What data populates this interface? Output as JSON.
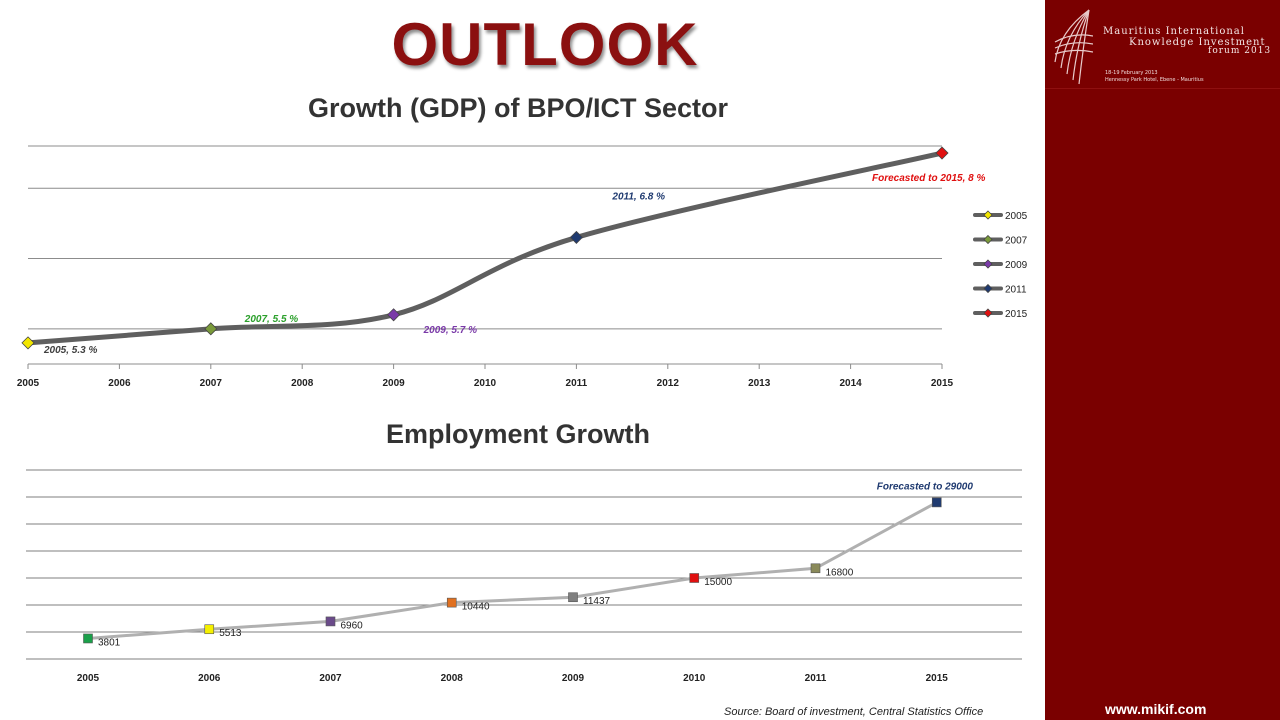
{
  "slide": {
    "title": "OUTLOOK",
    "source": "Source:  Board of investment,  Central Statistics Office",
    "website": "www.mikif.com"
  },
  "logo": {
    "line1": "Mauritius International",
    "line2": "Knowledge Investment",
    "line3": "forum 2013",
    "dates": "18-19 February 2013",
    "venue": "Hennessy Park Hotel, Ebene - Mauritius"
  },
  "colors": {
    "brand_red": "#8b1010",
    "sidebar": "#7a0000",
    "gdp_line": "#5f5f5f",
    "emp_line": "#b0b0b0"
  },
  "chart_data": [
    {
      "type": "line",
      "title": "Growth (GDP) of BPO/ICT Sector",
      "x_ticks": [
        "2005",
        "2006",
        "2007",
        "2008",
        "2009",
        "2010",
        "2011",
        "2012",
        "2013",
        "2014",
        "2015"
      ],
      "xlim": [
        2005,
        2015
      ],
      "ylim": [
        5,
        8.1
      ],
      "ygrid": [
        5.5,
        6.5,
        7.5
      ],
      "grid": true,
      "legend_placement": "right",
      "series": [
        {
          "name": "2005",
          "x": 2005,
          "y": 5.3,
          "color": "#f2e600",
          "label": "2005, 5.3 %",
          "label_color": "#404040"
        },
        {
          "name": "2007",
          "x": 2007,
          "y": 5.5,
          "color": "#7a9a3a",
          "label": "2007, 5.5 %",
          "label_color": "#2ca02c"
        },
        {
          "name": "2009",
          "x": 2009,
          "y": 5.7,
          "color": "#7a3aa8",
          "label": "2009, 5.7 %",
          "label_color": "#7a3aa8"
        },
        {
          "name": "2011",
          "x": 2011,
          "y": 6.8,
          "color": "#1f3a70",
          "label": "2011, 6.8 %",
          "label_color": "#1f3a70"
        },
        {
          "name": "2015",
          "x": 2015,
          "y": 8,
          "color": "#e01010",
          "label": "Forecasted to 2015, 8 %",
          "label_color": "#e01010"
        }
      ]
    },
    {
      "type": "line",
      "title": "Employment Growth",
      "categories": [
        "2005",
        "2006",
        "2007",
        "2008",
        "2009",
        "2010",
        "2011",
        "2015"
      ],
      "values": [
        3801,
        5513,
        6960,
        10440,
        11437,
        15000,
        16800,
        29000
      ],
      "point_labels": [
        "3801",
        "5513",
        "6960",
        "10440",
        "11437",
        "15000",
        "16800",
        "Forecasted to 29000"
      ],
      "point_colors": [
        "#1aa04a",
        "#f5f000",
        "#6a4a8a",
        "#e07020",
        "#7f7f7f",
        "#e01010",
        "#8a8a5a",
        "#1f3a70"
      ],
      "ylim": [
        0,
        35000
      ],
      "ygrid": [
        5000,
        10000,
        15000,
        20000,
        25000,
        30000,
        35000
      ],
      "grid": true
    }
  ]
}
